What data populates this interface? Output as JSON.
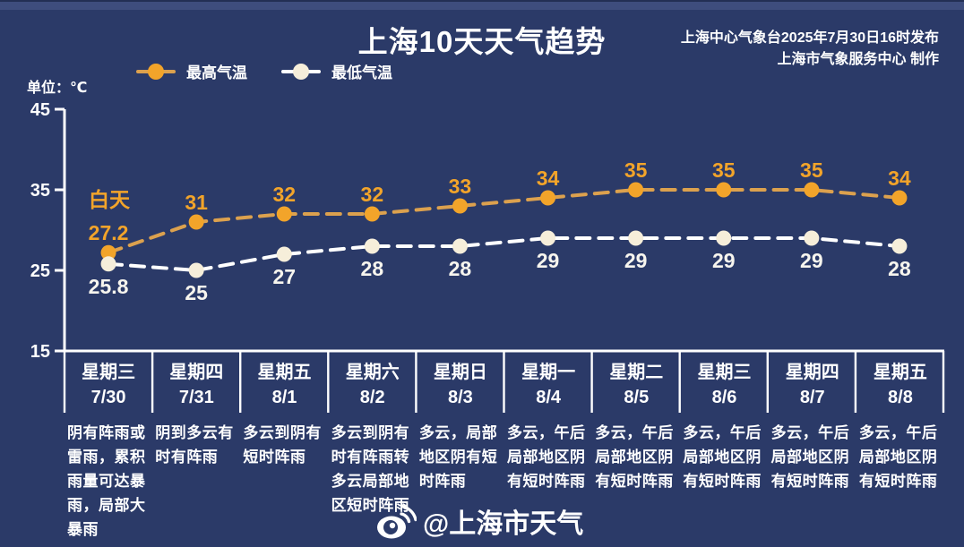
{
  "header": {
    "title": "上海10天天气趋势",
    "issued": "上海中心气象台2025年7月30日16时发布",
    "produced": "上海市气象服务中心 制作"
  },
  "legend": {
    "high": "最高气温",
    "low": "最低气温"
  },
  "unit_label": "单位：℃",
  "watermark": "@上海市天气",
  "watermark_icon": "weibo-icon",
  "colors": {
    "background": "#2b3a68",
    "top_strip": "#3e4d7d",
    "top_edge": "#232f54",
    "high": "#f2a42a",
    "high_line": "#dca14e",
    "low_point": "#f6eeda",
    "low_line": "#ffffff",
    "axis": "#ffffff",
    "text": "#ffffff"
  },
  "chart_data": {
    "type": "line",
    "title": "上海10天天气趋势",
    "unit": "℃",
    "ylim": [
      15,
      45
    ],
    "yticks": [
      45,
      35,
      25,
      15
    ],
    "grid": false,
    "legend_position": "top-left",
    "annotation": "白天",
    "categories": [
      "7/30",
      "7/31",
      "8/1",
      "8/2",
      "8/3",
      "8/4",
      "8/5",
      "8/6",
      "8/7",
      "8/8"
    ],
    "series": [
      {
        "name": "最高气温",
        "style": "dashed",
        "values": [
          27.2,
          31,
          32,
          32,
          33,
          34,
          35,
          35,
          35,
          34
        ]
      },
      {
        "name": "最低气温",
        "style": "dashed",
        "values": [
          25.8,
          25,
          27,
          28,
          28,
          29,
          29,
          29,
          29,
          28
        ]
      }
    ]
  },
  "days": [
    {
      "weekday": "星期三",
      "date": "7/30",
      "forecast": "阴有阵雨或\n雷雨，累积\n雨量可达暴\n雨，局部大\n暴雨"
    },
    {
      "weekday": "星期四",
      "date": "7/31",
      "forecast": "阴到多云有\n时有阵雨"
    },
    {
      "weekday": "星期五",
      "date": "8/1",
      "forecast": "多云到阴有\n短时阵雨"
    },
    {
      "weekday": "星期六",
      "date": "8/2",
      "forecast": "多云到阴有\n时有阵雨转\n多云局部地\n区短时阵雨"
    },
    {
      "weekday": "星期日",
      "date": "8/3",
      "forecast": "多云，局部\n地区阴有短\n时阵雨"
    },
    {
      "weekday": "星期一",
      "date": "8/4",
      "forecast": "多云，午后\n局部地区阴\n有短时阵雨"
    },
    {
      "weekday": "星期二",
      "date": "8/5",
      "forecast": "多云，午后\n局部地区阴\n有短时阵雨"
    },
    {
      "weekday": "星期三",
      "date": "8/6",
      "forecast": "多云，午后\n局部地区阴\n有短时阵雨"
    },
    {
      "weekday": "星期四",
      "date": "8/7",
      "forecast": "多云，午后\n局部地区阴\n有短时阵雨"
    },
    {
      "weekday": "星期五",
      "date": "8/8",
      "forecast": "多云，午后\n局部地区阴\n有短时阵雨"
    }
  ]
}
